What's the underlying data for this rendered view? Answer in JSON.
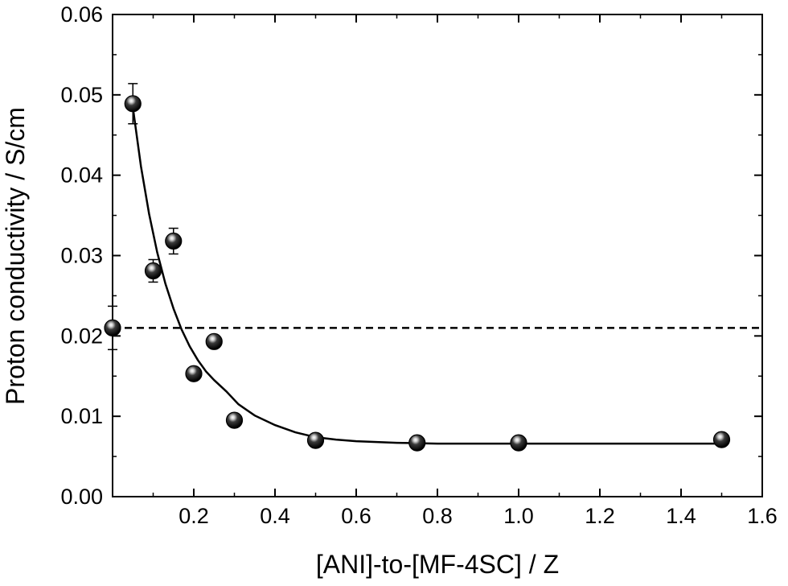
{
  "chart_data": {
    "type": "scatter",
    "xlabel": "[ANI]-to-[MF-4SC] / Z",
    "ylabel": "Proton conductivity / S/cm",
    "xlim": [
      0,
      1.6
    ],
    "ylim": [
      0,
      0.06
    ],
    "x_ticks": [
      "0.2",
      "0.4",
      "0.6",
      "0.8",
      "1.0",
      "1.2",
      "1.4",
      "1.6"
    ],
    "y_ticks": [
      "0.00",
      "0.01",
      "0.02",
      "0.03",
      "0.04",
      "0.05",
      "0.06"
    ],
    "x_tick_values": [
      0.2,
      0.4,
      0.6,
      0.8,
      1.0,
      1.2,
      1.4,
      1.6
    ],
    "y_tick_values": [
      0,
      0.01,
      0.02,
      0.03,
      0.04,
      0.05,
      0.06
    ],
    "grid": false,
    "series": [
      {
        "marker": "sphere",
        "color": "#000000",
        "points": [
          {
            "x": 0.0,
            "y": 0.021,
            "err": 0.0027
          },
          {
            "x": 0.05,
            "y": 0.0489,
            "err": 0.0025
          },
          {
            "x": 0.1,
            "y": 0.0281,
            "err": 0.0014
          },
          {
            "x": 0.15,
            "y": 0.0318,
            "err": 0.0016
          },
          {
            "x": 0.2,
            "y": 0.0153,
            "err": 0.0004
          },
          {
            "x": 0.25,
            "y": 0.0193,
            "err": 0.0008
          },
          {
            "x": 0.3,
            "y": 0.0095,
            "err": 0.0003
          },
          {
            "x": 0.5,
            "y": 0.007,
            "err": 0.0003
          },
          {
            "x": 0.75,
            "y": 0.0067,
            "err": 0.0002
          },
          {
            "x": 1.0,
            "y": 0.0067,
            "err": 0.0002
          },
          {
            "x": 1.5,
            "y": 0.0071,
            "err": 0.0003
          }
        ]
      }
    ],
    "fit_curve": {
      "style": "solid",
      "model": "exponential decay",
      "x": [
        0.05,
        0.07,
        0.09,
        0.11,
        0.13,
        0.15,
        0.17,
        0.19,
        0.21,
        0.23,
        0.25,
        0.28,
        0.31,
        0.35,
        0.4,
        0.45,
        0.5,
        0.55,
        0.6,
        0.7,
        0.8,
        0.9,
        1.0,
        1.1,
        1.2,
        1.3,
        1.4,
        1.5
      ],
      "y": [
        0.0484,
        0.0411,
        0.0352,
        0.0304,
        0.0265,
        0.0234,
        0.0208,
        0.0187,
        0.017,
        0.0156,
        0.0145,
        0.0131,
        0.0115,
        0.0101,
        0.0089,
        0.008,
        0.0074,
        0.0071,
        0.0069,
        0.0067,
        0.0066,
        0.0066,
        0.0066,
        0.0066,
        0.0066,
        0.0066,
        0.0066,
        0.0066
      ]
    },
    "reference_line": {
      "style": "dashed",
      "y": 0.021
    }
  }
}
